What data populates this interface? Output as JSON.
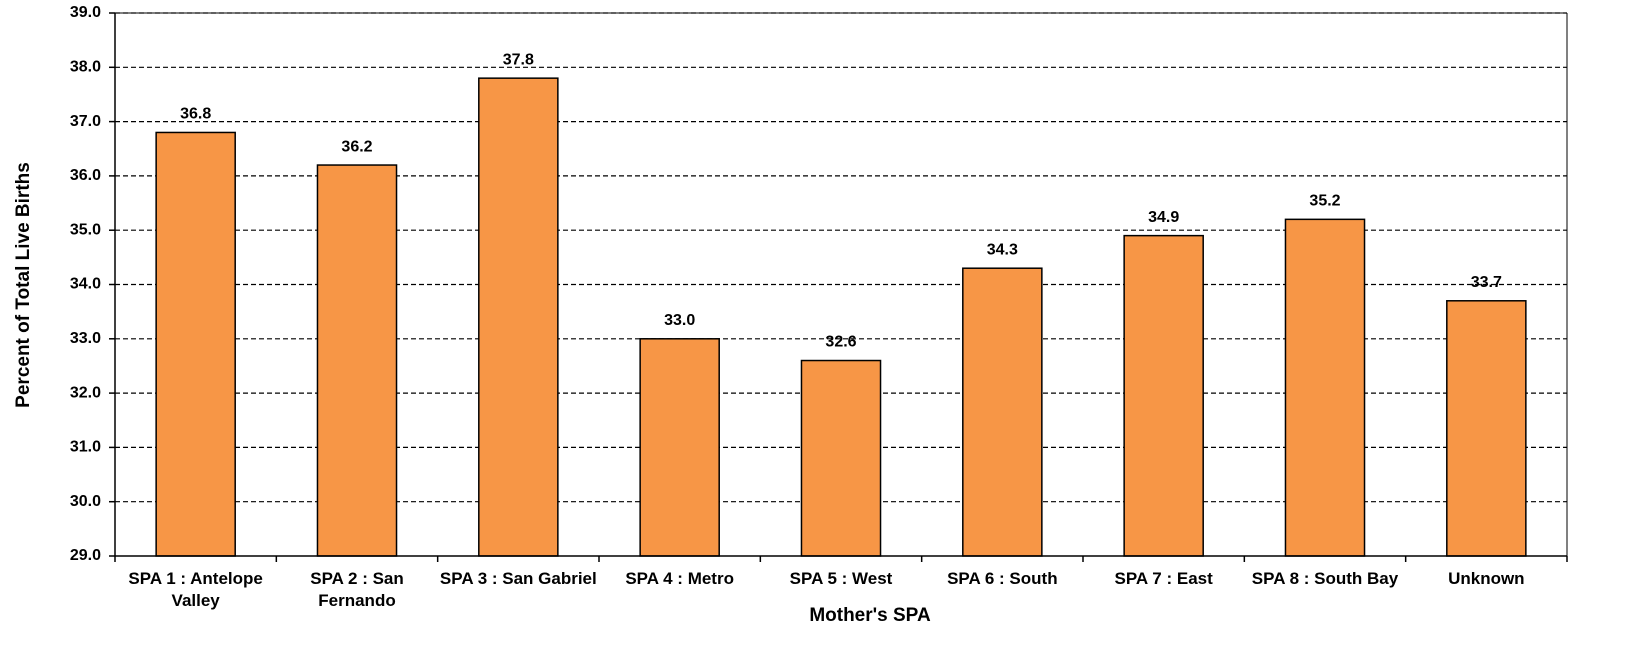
{
  "chart_data": {
    "type": "bar",
    "x_label": "Mother's SPA",
    "y_label": "Percent of Total Live Births",
    "categories": [
      "SPA 1 : Antelope Valley",
      "SPA 2 : San Fernando",
      "SPA 3 : San Gabriel",
      "SPA 4 : Metro",
      "SPA 5 : West",
      "SPA 6 : South",
      "SPA 7 : East",
      "SPA 8 : South Bay",
      "Unknown"
    ],
    "values": [
      36.8,
      36.2,
      37.8,
      33.0,
      32.6,
      34.3,
      34.9,
      35.2,
      33.7
    ],
    "value_labels": [
      "36.8",
      "36.2",
      "37.8",
      "33.0",
      "32.6",
      "34.3",
      "34.9",
      "35.2",
      "33.7"
    ],
    "color": "#f79646",
    "ylim": [
      29,
      39
    ],
    "yticks": [
      {
        "value": 29,
        "label": "29.0"
      },
      {
        "value": 30,
        "label": "30.0"
      },
      {
        "value": 31,
        "label": "31.0"
      },
      {
        "value": 32,
        "label": "32.0"
      },
      {
        "value": 33,
        "label": "33.0"
      },
      {
        "value": 34,
        "label": "34.0"
      },
      {
        "value": 35,
        "label": "35.0"
      },
      {
        "value": 36,
        "label": "36.0"
      },
      {
        "value": 37,
        "label": "37.0"
      },
      {
        "value": 38,
        "label": "38.0"
      },
      {
        "value": 39,
        "label": "39.0"
      }
    ],
    "grid": true
  }
}
